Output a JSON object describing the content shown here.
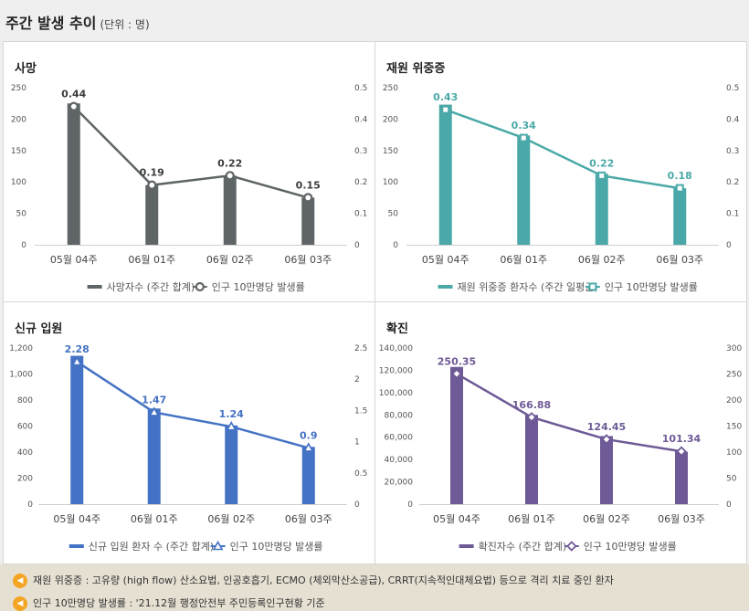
{
  "header": {
    "title": "주간 발생 추이",
    "unit": "(단위 : 명)"
  },
  "chart_data": [
    {
      "id": "death",
      "type": "bar",
      "title": "사망",
      "color": "#5f6566",
      "marker": "circle",
      "categories": [
        "05월 04주",
        "06월 01주",
        "06월 02주",
        "06월 03주"
      ],
      "series": [
        {
          "name": "사망자수 (주간 합계)",
          "type": "bar",
          "values": [
            225,
            95,
            110,
            75
          ]
        },
        {
          "name": "인구 10만명당 발생률",
          "type": "line",
          "axis": "right",
          "values": [
            0.44,
            0.19,
            0.22,
            0.15
          ]
        }
      ],
      "left_axis": {
        "min": 0,
        "max": 250,
        "ticks": [
          "0",
          "50",
          "100",
          "150",
          "200",
          "250"
        ]
      },
      "right_axis": {
        "min": 0,
        "max": 0.5,
        "ticks": [
          "0",
          "0.1",
          "0.2",
          "0.3",
          "0.4",
          "0.5"
        ]
      },
      "data_labels": [
        "0.44",
        "0.19",
        "0.22",
        "0.15"
      ]
    },
    {
      "id": "severe",
      "type": "bar",
      "title": "재원 위중증",
      "color": "#4aa9a8",
      "marker": "square",
      "categories": [
        "05월 04주",
        "06월 01주",
        "06월 02주",
        "06월 03주"
      ],
      "series": [
        {
          "name": "재원 위중증 환자수 (주간 일평균)",
          "type": "bar",
          "values": [
            223,
            174,
            113,
            90
          ]
        },
        {
          "name": "인구 10만명당 발생률",
          "type": "line",
          "axis": "right",
          "values": [
            0.43,
            0.34,
            0.22,
            0.18
          ]
        }
      ],
      "left_axis": {
        "min": 0,
        "max": 250,
        "ticks": [
          "0",
          "50",
          "100",
          "150",
          "200",
          "250"
        ]
      },
      "right_axis": {
        "min": 0,
        "max": 0.5,
        "ticks": [
          "0",
          "0.1",
          "0.2",
          "0.3",
          "0.4",
          "0.5"
        ]
      },
      "data_labels": [
        "0.43",
        "0.34",
        "0.22",
        "0.18"
      ]
    },
    {
      "id": "admission",
      "type": "bar",
      "title": "신규 입원",
      "color": "#4472c4",
      "marker": "triangle",
      "categories": [
        "05월 04주",
        "06월 01주",
        "06월 02주",
        "06월 03주"
      ],
      "series": [
        {
          "name": "신규 입원 환자 수 (주간 합계)",
          "type": "bar",
          "values": [
            1140,
            735,
            605,
            440
          ]
        },
        {
          "name": "인구 10만명당 발생률",
          "type": "line",
          "axis": "right",
          "values": [
            2.28,
            1.47,
            1.24,
            0.9
          ]
        }
      ],
      "left_axis": {
        "min": 0,
        "max": 1200,
        "ticks": [
          "0",
          "200",
          "400",
          "600",
          "800",
          "1,000",
          "1,200"
        ]
      },
      "right_axis": {
        "min": 0,
        "max": 2.5,
        "ticks": [
          "0",
          "0.5",
          "1",
          "1.5",
          "2",
          "2.5"
        ]
      },
      "data_labels": [
        "2.28",
        "1.47",
        "1.24",
        "0.9"
      ]
    },
    {
      "id": "confirmed",
      "type": "bar",
      "title": "확진",
      "color": "#6e5a96",
      "marker": "diamond",
      "categories": [
        "05월 04주",
        "06월 01주",
        "06월 02주",
        "06월 03주"
      ],
      "series": [
        {
          "name": "확진자수 (주간 합계)",
          "type": "bar",
          "values": [
            123000,
            80000,
            61000,
            47000
          ]
        },
        {
          "name": "인구 10만명당 발생률",
          "type": "line",
          "axis": "right",
          "values": [
            250.35,
            166.88,
            124.45,
            101.34
          ]
        }
      ],
      "left_axis": {
        "min": 0,
        "max": 140000,
        "ticks": [
          "0",
          "20,000",
          "40,000",
          "60,000",
          "80,000",
          "100,000",
          "120,000",
          "140,000"
        ]
      },
      "right_axis": {
        "min": 0,
        "max": 300,
        "ticks": [
          "0",
          "50",
          "100",
          "150",
          "200",
          "250",
          "300"
        ]
      },
      "data_labels": [
        "250.35",
        "166.88",
        "124.45",
        "101.34"
      ]
    }
  ],
  "footer": {
    "notes": [
      "재원 위중증 : 고유량 (high flow) 산소요법, 인공호흡기, ECMO (체외막산소공급), CRRT(지속적인대체요법) 등으로 격리 치료 중인 환자",
      "인구 10만명당 발생률 : '21.12월 행정안전부 주민등록인구현황 기준"
    ]
  }
}
